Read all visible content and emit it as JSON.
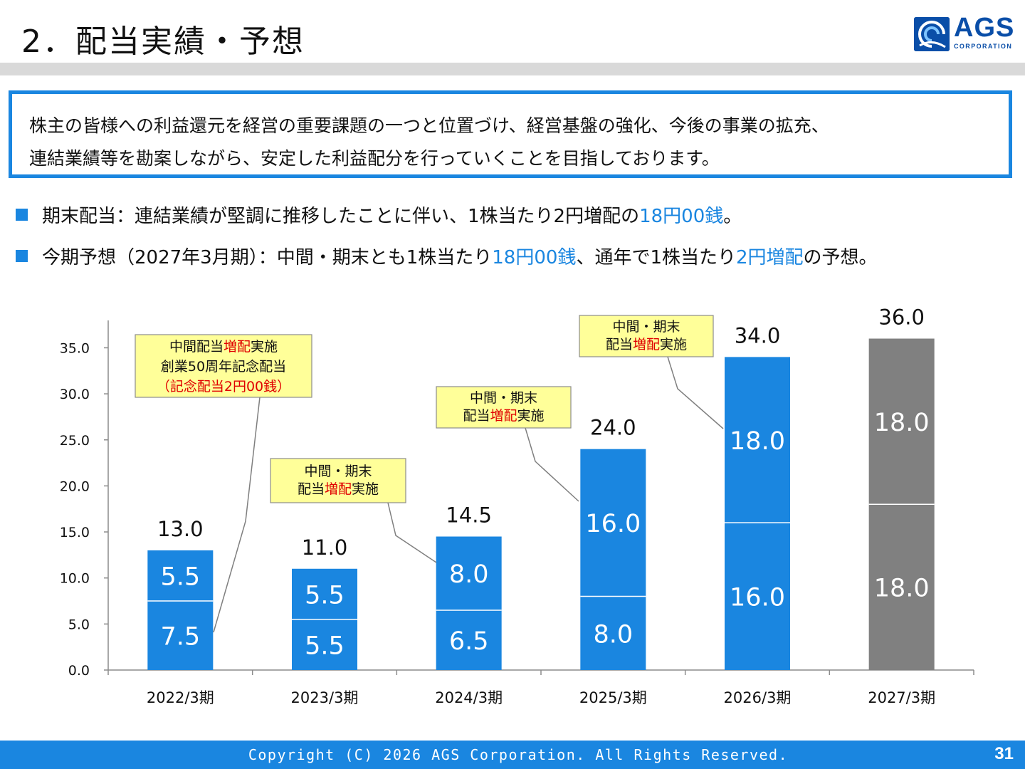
{
  "header": {
    "title": "2．配当実績・予想",
    "logo_text": "AGS",
    "logo_sub": "CORPORATION"
  },
  "intro": {
    "line1": "株主の皆様への利益還元を経営の重要課題の一つと位置づけ、経営基盤の強化、今後の事業の拡充、",
    "line2": "連結業績等を勘案しながら、安定した利益配分を行っていくことを目指しております。"
  },
  "bullets": [
    {
      "pre": "期末配当：連結業績が堅調に推移したことに伴い、1株当たり2円増配の",
      "hl1": "18円00銭",
      "post": "。"
    },
    {
      "pre": "今期予想（2027年3月期）：中間・期末とも1株当たり",
      "hl1": "18円00銭",
      "mid": "、通年で1株当たり",
      "hl2": "2円増配",
      "post": "の予想。"
    }
  ],
  "chart_data": {
    "type": "bar",
    "stacked": true,
    "categories": [
      "2022/3期",
      "2023/3期",
      "2024/3期",
      "2025/3期",
      "2026/3期",
      "2027/3期"
    ],
    "series": [
      {
        "values": [
          7.5,
          5.5,
          6.5,
          8.0,
          16.0,
          18.0
        ]
      },
      {
        "values": [
          5.5,
          5.5,
          8.0,
          16.0,
          18.0,
          18.0
        ]
      }
    ],
    "totals": [
      "13.0",
      "11.0",
      "14.5",
      "24.0",
      "34.0",
      "36.0"
    ],
    "bottom_labels": [
      "7.5",
      "5.5",
      "6.5",
      "8.0",
      "16.0",
      "18.0"
    ],
    "top_labels": [
      "5.5",
      "5.5",
      "8.0",
      "16.0",
      "18.0",
      "18.0"
    ],
    "bar_colors": [
      "#1a86e0",
      "#1a86e0",
      "#1a86e0",
      "#1a86e0",
      "#1a86e0",
      "#808080"
    ],
    "ylim": [
      0,
      35
    ],
    "yticks": [
      "0.0",
      "5.0",
      "10.0",
      "15.0",
      "20.0",
      "25.0",
      "30.0",
      "35.0"
    ],
    "grid": false,
    "callouts": [
      {
        "bar": 0,
        "segment": "bottom",
        "lines": [
          [
            "中間配当",
            "増配",
            "実施"
          ],
          [
            "創業50周年記念配当"
          ],
          [
            "（記念配当2円00銭）"
          ]
        ]
      },
      {
        "bar": 2,
        "segment": "top",
        "lines": [
          [
            "中間・期末"
          ],
          [
            "配当",
            "増配",
            "実施"
          ]
        ]
      },
      {
        "bar": 3,
        "segment": "top",
        "lines": [
          [
            "中間・期末"
          ],
          [
            "配当",
            "増配",
            "実施"
          ]
        ]
      },
      {
        "bar": 4,
        "segment": "top",
        "lines": [
          [
            "中間・期末"
          ],
          [
            "配当",
            "増配",
            "実施"
          ]
        ]
      }
    ]
  },
  "footer": {
    "copyright": "Copyright (C) 2026 AGS Corporation. All Rights Reserved.",
    "page": "31"
  }
}
